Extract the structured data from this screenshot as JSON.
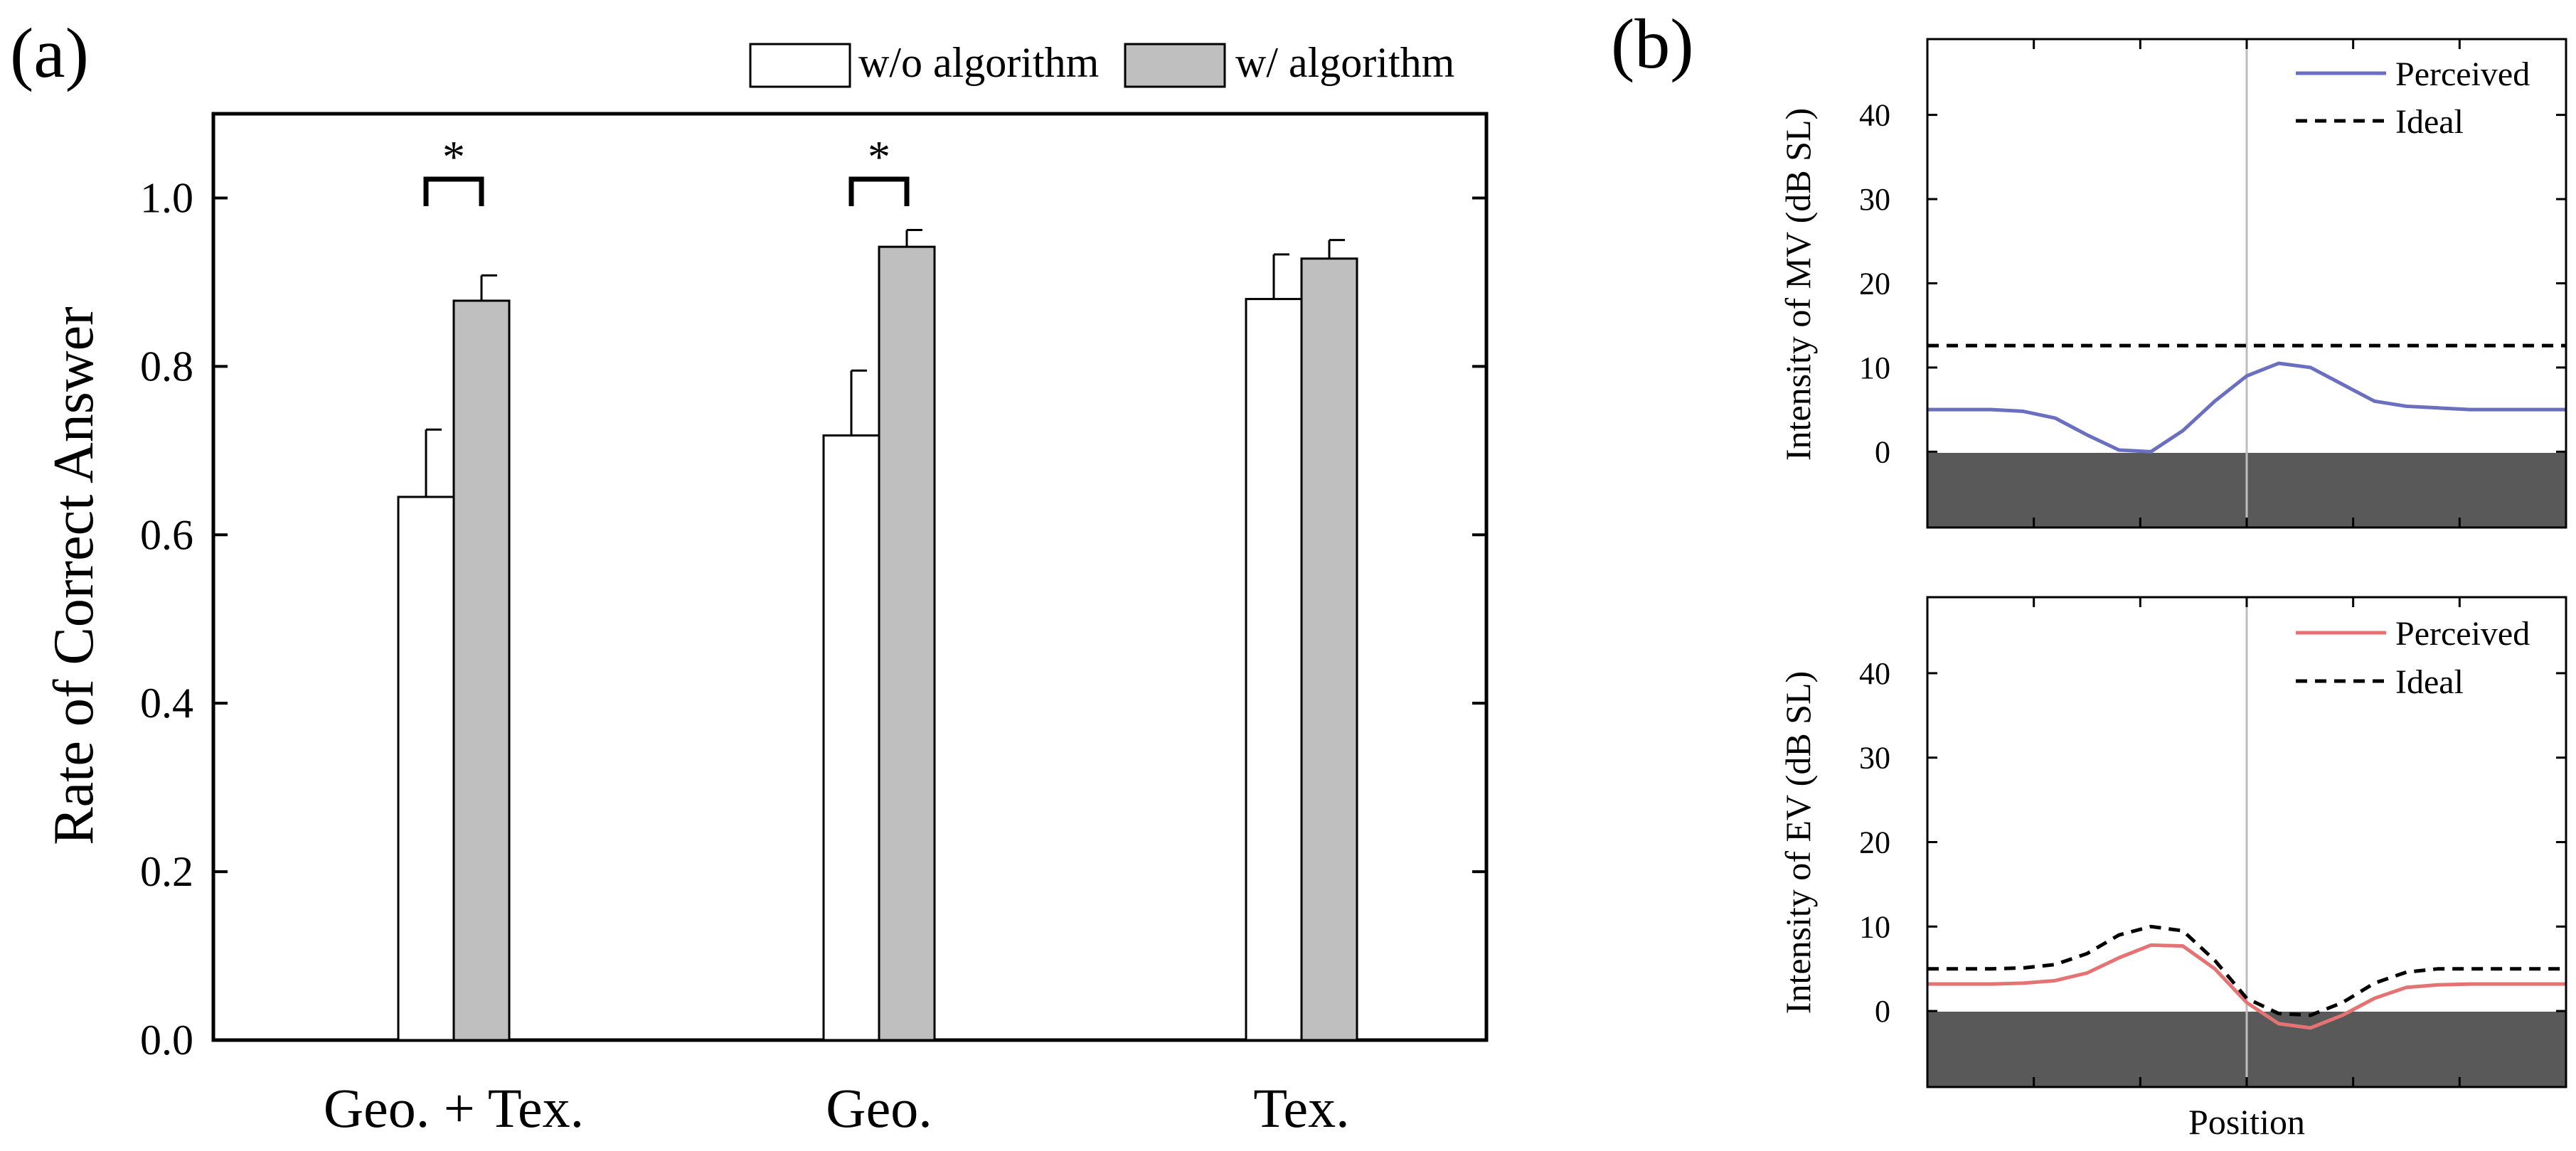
{
  "chart_data": [
    {
      "type": "bar",
      "panel_label": "(a)",
      "ylabel": "Rate of Correct Answer",
      "ylim": [
        0.0,
        1.1
      ],
      "yticks": [
        "0.0",
        "0.2",
        "0.4",
        "0.6",
        "0.8",
        "1.0"
      ],
      "categories": [
        "Geo. + Tex.",
        "Geo.",
        "Tex."
      ],
      "series": [
        {
          "name": "w/o algorithm",
          "color": "#ffffff",
          "values": [
            0.645,
            0.718,
            0.88
          ],
          "errors": [
            0.08,
            0.077,
            0.053
          ]
        },
        {
          "name": "w/ algorithm",
          "color": "#bfbfbf",
          "values": [
            0.878,
            0.942,
            0.928
          ],
          "errors": [
            0.03,
            0.02,
            0.022
          ]
        }
      ],
      "significance": [
        {
          "category_index": 0,
          "label": "*"
        },
        {
          "category_index": 1,
          "label": "*"
        }
      ],
      "legend": "above-top-right"
    },
    {
      "type": "line",
      "panel_label": "(b)",
      "ylabel": "Intensity of MV (dB SL)",
      "ylim": [
        -9,
        49
      ],
      "yticks": [
        "0",
        "10",
        "20",
        "30",
        "40"
      ],
      "xlabel": "",
      "x": [
        0,
        5,
        10,
        15,
        20,
        25,
        30,
        35,
        40,
        45,
        50,
        55,
        60,
        65,
        70,
        75,
        80,
        85,
        90,
        95,
        100
      ],
      "series": [
        {
          "name": "Perceived",
          "color": "#6b6fbf",
          "style": "solid",
          "values": [
            5,
            5,
            5,
            4.8,
            4,
            2,
            0.2,
            0,
            2.5,
            6,
            9,
            10.5,
            10,
            8,
            6,
            5.4,
            5.2,
            5,
            5,
            5,
            5
          ]
        },
        {
          "name": "Ideal",
          "color": "#000000",
          "style": "dashed",
          "values": [
            12.6,
            12.6,
            12.6,
            12.6,
            12.6,
            12.6,
            12.6,
            12.6,
            12.6,
            12.6,
            12.6,
            12.6,
            12.6,
            12.6,
            12.6,
            12.6,
            12.6,
            12.6,
            12.6,
            12.6,
            12.6
          ]
        }
      ],
      "legend": "top-right"
    },
    {
      "type": "line",
      "panel_label": "",
      "ylabel": "Intensity of EV (dB SL)",
      "ylim": [
        -9,
        49
      ],
      "yticks": [
        "0",
        "10",
        "20",
        "30",
        "40"
      ],
      "xlabel": "Position",
      "x": [
        0,
        5,
        10,
        15,
        20,
        25,
        30,
        35,
        40,
        45,
        50,
        55,
        60,
        65,
        70,
        75,
        80,
        85,
        90,
        95,
        100
      ],
      "series": [
        {
          "name": "Perceived",
          "color": "#e57373",
          "style": "solid",
          "values": [
            3.2,
            3.2,
            3.2,
            3.3,
            3.6,
            4.5,
            6.3,
            7.8,
            7.7,
            5,
            1,
            -1.5,
            -2,
            -0.5,
            1.5,
            2.8,
            3.1,
            3.2,
            3.2,
            3.2,
            3.2
          ]
        },
        {
          "name": "Ideal",
          "color": "#000000",
          "style": "dashed",
          "values": [
            5,
            5,
            5,
            5.1,
            5.5,
            6.8,
            9,
            10,
            9.5,
            6,
            1.5,
            -0.3,
            -0.5,
            1,
            3.3,
            4.6,
            5,
            5,
            5,
            5,
            5
          ]
        }
      ],
      "legend": "top-right"
    }
  ]
}
